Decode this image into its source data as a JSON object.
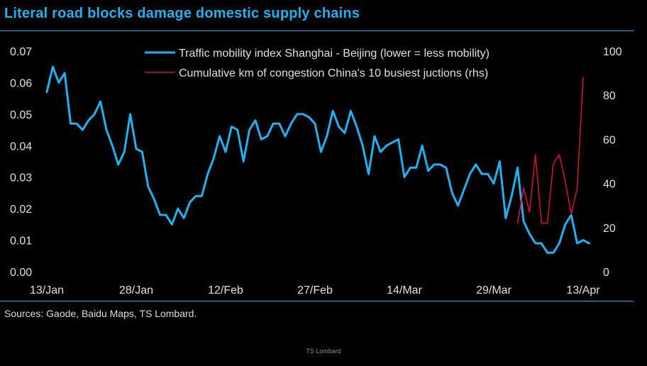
{
  "title": "Literal road blocks damage domestic supply chains",
  "source": "Sources: Gaode, Baidu Maps, TS Lombard.",
  "footer": "TS Lombard",
  "colors": {
    "title": "#1fb2f0",
    "series_traffic": "#1fb2f0",
    "series_congestion": "#d0103a",
    "background": "#000000"
  },
  "chart_data": {
    "type": "line",
    "legend_placement": "top-center",
    "grid": false,
    "x_ticks": [
      "13/Jan",
      "28/Jan",
      "12/Feb",
      "27/Feb",
      "14/Mar",
      "29/Mar",
      "13/Apr"
    ],
    "x_range": [
      "2022-01-13",
      "2022-04-13"
    ],
    "y_left": {
      "range": [
        0,
        0.07
      ],
      "ticks": [
        "0.00",
        "0.01",
        "0.02",
        "0.03",
        "0.04",
        "0.05",
        "0.06",
        "0.07"
      ]
    },
    "y_right": {
      "range": [
        0,
        100
      ],
      "ticks": [
        "0",
        "20",
        "40",
        "60",
        "80",
        "100"
      ]
    },
    "series": [
      {
        "name": "Traffic mobility index Shanghai - Beijing (lower = less mobility)",
        "axis": "left",
        "color": "#1fb2f0",
        "points": [
          [
            "2022-01-13",
            0.057
          ],
          [
            "2022-01-14",
            0.065
          ],
          [
            "2022-01-15",
            0.06
          ],
          [
            "2022-01-16",
            0.063
          ],
          [
            "2022-01-17",
            0.047
          ],
          [
            "2022-01-18",
            0.047
          ],
          [
            "2022-01-19",
            0.045
          ],
          [
            "2022-01-20",
            0.048
          ],
          [
            "2022-01-21",
            0.05
          ],
          [
            "2022-01-22",
            0.054
          ],
          [
            "2022-01-23",
            0.045
          ],
          [
            "2022-01-24",
            0.04
          ],
          [
            "2022-01-25",
            0.034
          ],
          [
            "2022-01-26",
            0.038
          ],
          [
            "2022-01-27",
            0.05
          ],
          [
            "2022-01-28",
            0.039
          ],
          [
            "2022-01-29",
            0.038
          ],
          [
            "2022-01-30",
            0.027
          ],
          [
            "2022-01-31",
            0.023
          ],
          [
            "2022-02-01",
            0.018
          ],
          [
            "2022-02-02",
            0.018
          ],
          [
            "2022-02-03",
            0.015
          ],
          [
            "2022-02-04",
            0.02
          ],
          [
            "2022-02-05",
            0.017
          ],
          [
            "2022-02-06",
            0.022
          ],
          [
            "2022-02-07",
            0.024
          ],
          [
            "2022-02-08",
            0.024
          ],
          [
            "2022-02-09",
            0.031
          ],
          [
            "2022-02-10",
            0.036
          ],
          [
            "2022-02-11",
            0.043
          ],
          [
            "2022-02-12",
            0.038
          ],
          [
            "2022-02-13",
            0.046
          ],
          [
            "2022-02-14",
            0.045
          ],
          [
            "2022-02-15",
            0.035
          ],
          [
            "2022-02-16",
            0.045
          ],
          [
            "2022-02-17",
            0.048
          ],
          [
            "2022-02-18",
            0.042
          ],
          [
            "2022-02-19",
            0.043
          ],
          [
            "2022-02-20",
            0.047
          ],
          [
            "2022-02-21",
            0.047
          ],
          [
            "2022-02-22",
            0.043
          ],
          [
            "2022-02-23",
            0.047
          ],
          [
            "2022-02-24",
            0.05
          ],
          [
            "2022-02-25",
            0.05
          ],
          [
            "2022-02-26",
            0.049
          ],
          [
            "2022-02-27",
            0.047
          ],
          [
            "2022-02-28",
            0.038
          ],
          [
            "2022-03-01",
            0.043
          ],
          [
            "2022-03-02",
            0.051
          ],
          [
            "2022-03-03",
            0.046
          ],
          [
            "2022-03-04",
            0.044
          ],
          [
            "2022-03-05",
            0.051
          ],
          [
            "2022-03-06",
            0.046
          ],
          [
            "2022-03-07",
            0.04
          ],
          [
            "2022-03-08",
            0.031
          ],
          [
            "2022-03-09",
            0.043
          ],
          [
            "2022-03-10",
            0.038
          ],
          [
            "2022-03-11",
            0.04
          ],
          [
            "2022-03-12",
            0.041
          ],
          [
            "2022-03-13",
            0.042
          ],
          [
            "2022-03-14",
            0.03
          ],
          [
            "2022-03-15",
            0.033
          ],
          [
            "2022-03-16",
            0.033
          ],
          [
            "2022-03-17",
            0.04
          ],
          [
            "2022-03-18",
            0.032
          ],
          [
            "2022-03-19",
            0.034
          ],
          [
            "2022-03-20",
            0.034
          ],
          [
            "2022-03-21",
            0.033
          ],
          [
            "2022-03-22",
            0.025
          ],
          [
            "2022-03-23",
            0.021
          ],
          [
            "2022-03-24",
            0.026
          ],
          [
            "2022-03-25",
            0.031
          ],
          [
            "2022-03-26",
            0.034
          ],
          [
            "2022-03-27",
            0.031
          ],
          [
            "2022-03-28",
            0.031
          ],
          [
            "2022-03-29",
            0.028
          ],
          [
            "2022-03-30",
            0.035
          ],
          [
            "2022-03-31",
            0.017
          ],
          [
            "2022-04-01",
            0.024
          ],
          [
            "2022-04-02",
            0.033
          ],
          [
            "2022-04-03",
            0.016
          ],
          [
            "2022-04-04",
            0.012
          ],
          [
            "2022-04-05",
            0.009
          ],
          [
            "2022-04-06",
            0.009
          ],
          [
            "2022-04-07",
            0.006
          ],
          [
            "2022-04-08",
            0.006
          ],
          [
            "2022-04-09",
            0.009
          ],
          [
            "2022-04-10",
            0.015
          ],
          [
            "2022-04-11",
            0.018
          ],
          [
            "2022-04-12",
            0.009
          ],
          [
            "2022-04-13",
            0.01
          ],
          [
            "2022-04-14",
            0.009
          ]
        ]
      },
      {
        "name": "Cumulative km of congestion China's 10 busiest jucti​ons (rhs)",
        "axis": "right",
        "color": "#d0103a",
        "points": [
          [
            "2022-04-02",
            22
          ],
          [
            "2022-04-03",
            38
          ],
          [
            "2022-04-04",
            27
          ],
          [
            "2022-04-05",
            53
          ],
          [
            "2022-04-06",
            22
          ],
          [
            "2022-04-07",
            22
          ],
          [
            "2022-04-08",
            49
          ],
          [
            "2022-04-09",
            53
          ],
          [
            "2022-04-10",
            41
          ],
          [
            "2022-04-11",
            26
          ],
          [
            "2022-04-12",
            38
          ],
          [
            "2022-04-13",
            88
          ]
        ]
      }
    ]
  }
}
